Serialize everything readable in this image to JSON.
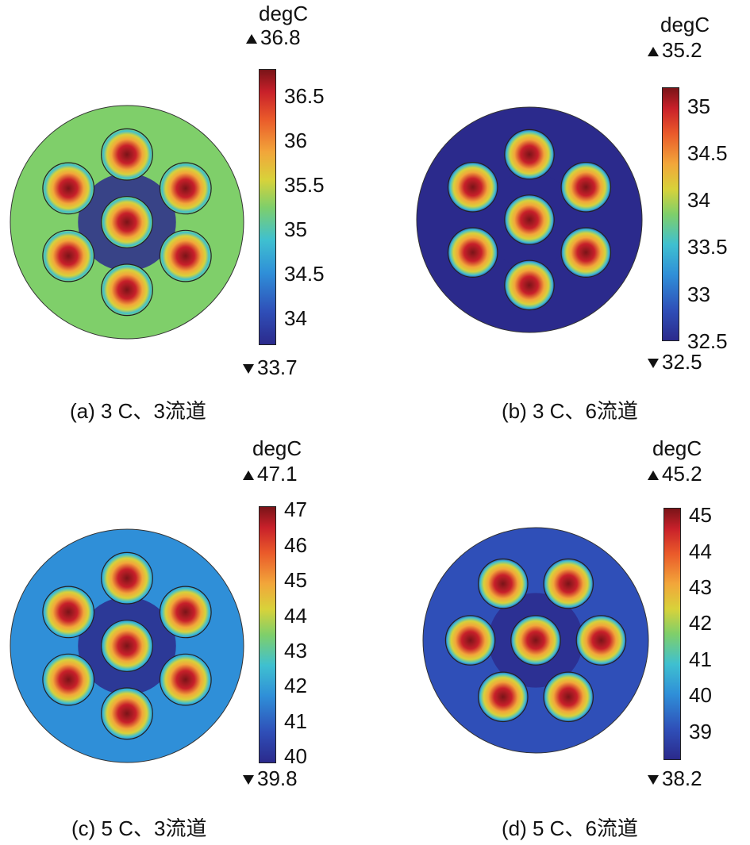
{
  "chart_data": [
    {
      "type": "heatmap",
      "panel": "a",
      "caption": "(a) 3 C、3流道",
      "unit": "degC",
      "max_label": "36.8",
      "min_label": "33.7",
      "range": [
        33.7,
        36.8
      ],
      "ticks": [
        {
          "label": "36.5",
          "value": 36.5
        },
        {
          "label": "36",
          "value": 36.0
        },
        {
          "label": "35.5",
          "value": 35.5
        },
        {
          "label": "35",
          "value": 35.0
        },
        {
          "label": "34.5",
          "value": 34.5
        },
        {
          "label": "34",
          "value": 34.0
        }
      ],
      "cells": 7,
      "cell_layout": "hexagonal",
      "background_level": 0.45
    },
    {
      "type": "heatmap",
      "panel": "b",
      "caption": "(b) 3 C、6流道",
      "unit": "degC",
      "max_label": "35.2",
      "min_label": "32.5",
      "range": [
        32.5,
        35.2
      ],
      "ticks": [
        {
          "label": "35",
          "value": 35.0
        },
        {
          "label": "34.5",
          "value": 34.5
        },
        {
          "label": "34",
          "value": 34.0
        },
        {
          "label": "33.5",
          "value": 33.5
        },
        {
          "label": "33",
          "value": 33.0
        },
        {
          "label": "32.5",
          "value": 32.5
        }
      ],
      "cells": 7,
      "cell_layout": "hexagonal",
      "background_level": 0.05
    },
    {
      "type": "heatmap",
      "panel": "c",
      "caption": "(c) 5 C、3流道",
      "unit": "degC",
      "max_label": "47.1",
      "min_label": "39.8",
      "range": [
        39.8,
        47.1
      ],
      "ticks": [
        {
          "label": "47",
          "value": 47
        },
        {
          "label": "46",
          "value": 46
        },
        {
          "label": "45",
          "value": 45
        },
        {
          "label": "44",
          "value": 44
        },
        {
          "label": "43",
          "value": 43
        },
        {
          "label": "42",
          "value": 42
        },
        {
          "label": "41",
          "value": 41
        },
        {
          "label": "40",
          "value": 40
        }
      ],
      "cells": 7,
      "cell_layout": "hexagonal",
      "background_level": 0.22
    },
    {
      "type": "heatmap",
      "panel": "d",
      "caption": "(d) 5 C、6流道",
      "unit": "degC",
      "max_label": "45.2",
      "min_label": "38.2",
      "range": [
        38.2,
        45.2
      ],
      "ticks": [
        {
          "label": "45",
          "value": 45
        },
        {
          "label": "44",
          "value": 44
        },
        {
          "label": "43",
          "value": 43
        },
        {
          "label": "42",
          "value": 42
        },
        {
          "label": "41",
          "value": 41
        },
        {
          "label": "40",
          "value": 40
        },
        {
          "label": "39",
          "value": 39
        }
      ],
      "cells": 7,
      "cell_layout": "hexagonal-rotated",
      "background_level": 0.08
    }
  ]
}
